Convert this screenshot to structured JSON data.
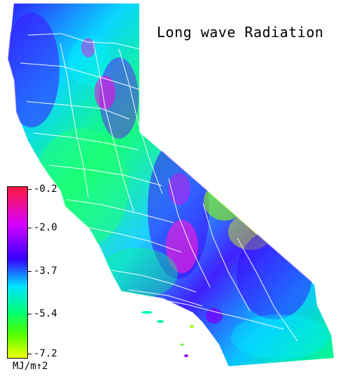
{
  "title": "Long wave Radiation",
  "legend": {
    "ticks": [
      "-0.2",
      "-2.0",
      "-3.7",
      "-5.4",
      "-7.2"
    ],
    "unit": "MJ/m↑2",
    "colors": [
      "#ff1a3d",
      "#d400ff",
      "#3500ff",
      "#00e2ff",
      "#00ff78",
      "#4dff00",
      "#f2ff00"
    ]
  },
  "map": {
    "region": "California"
  }
}
